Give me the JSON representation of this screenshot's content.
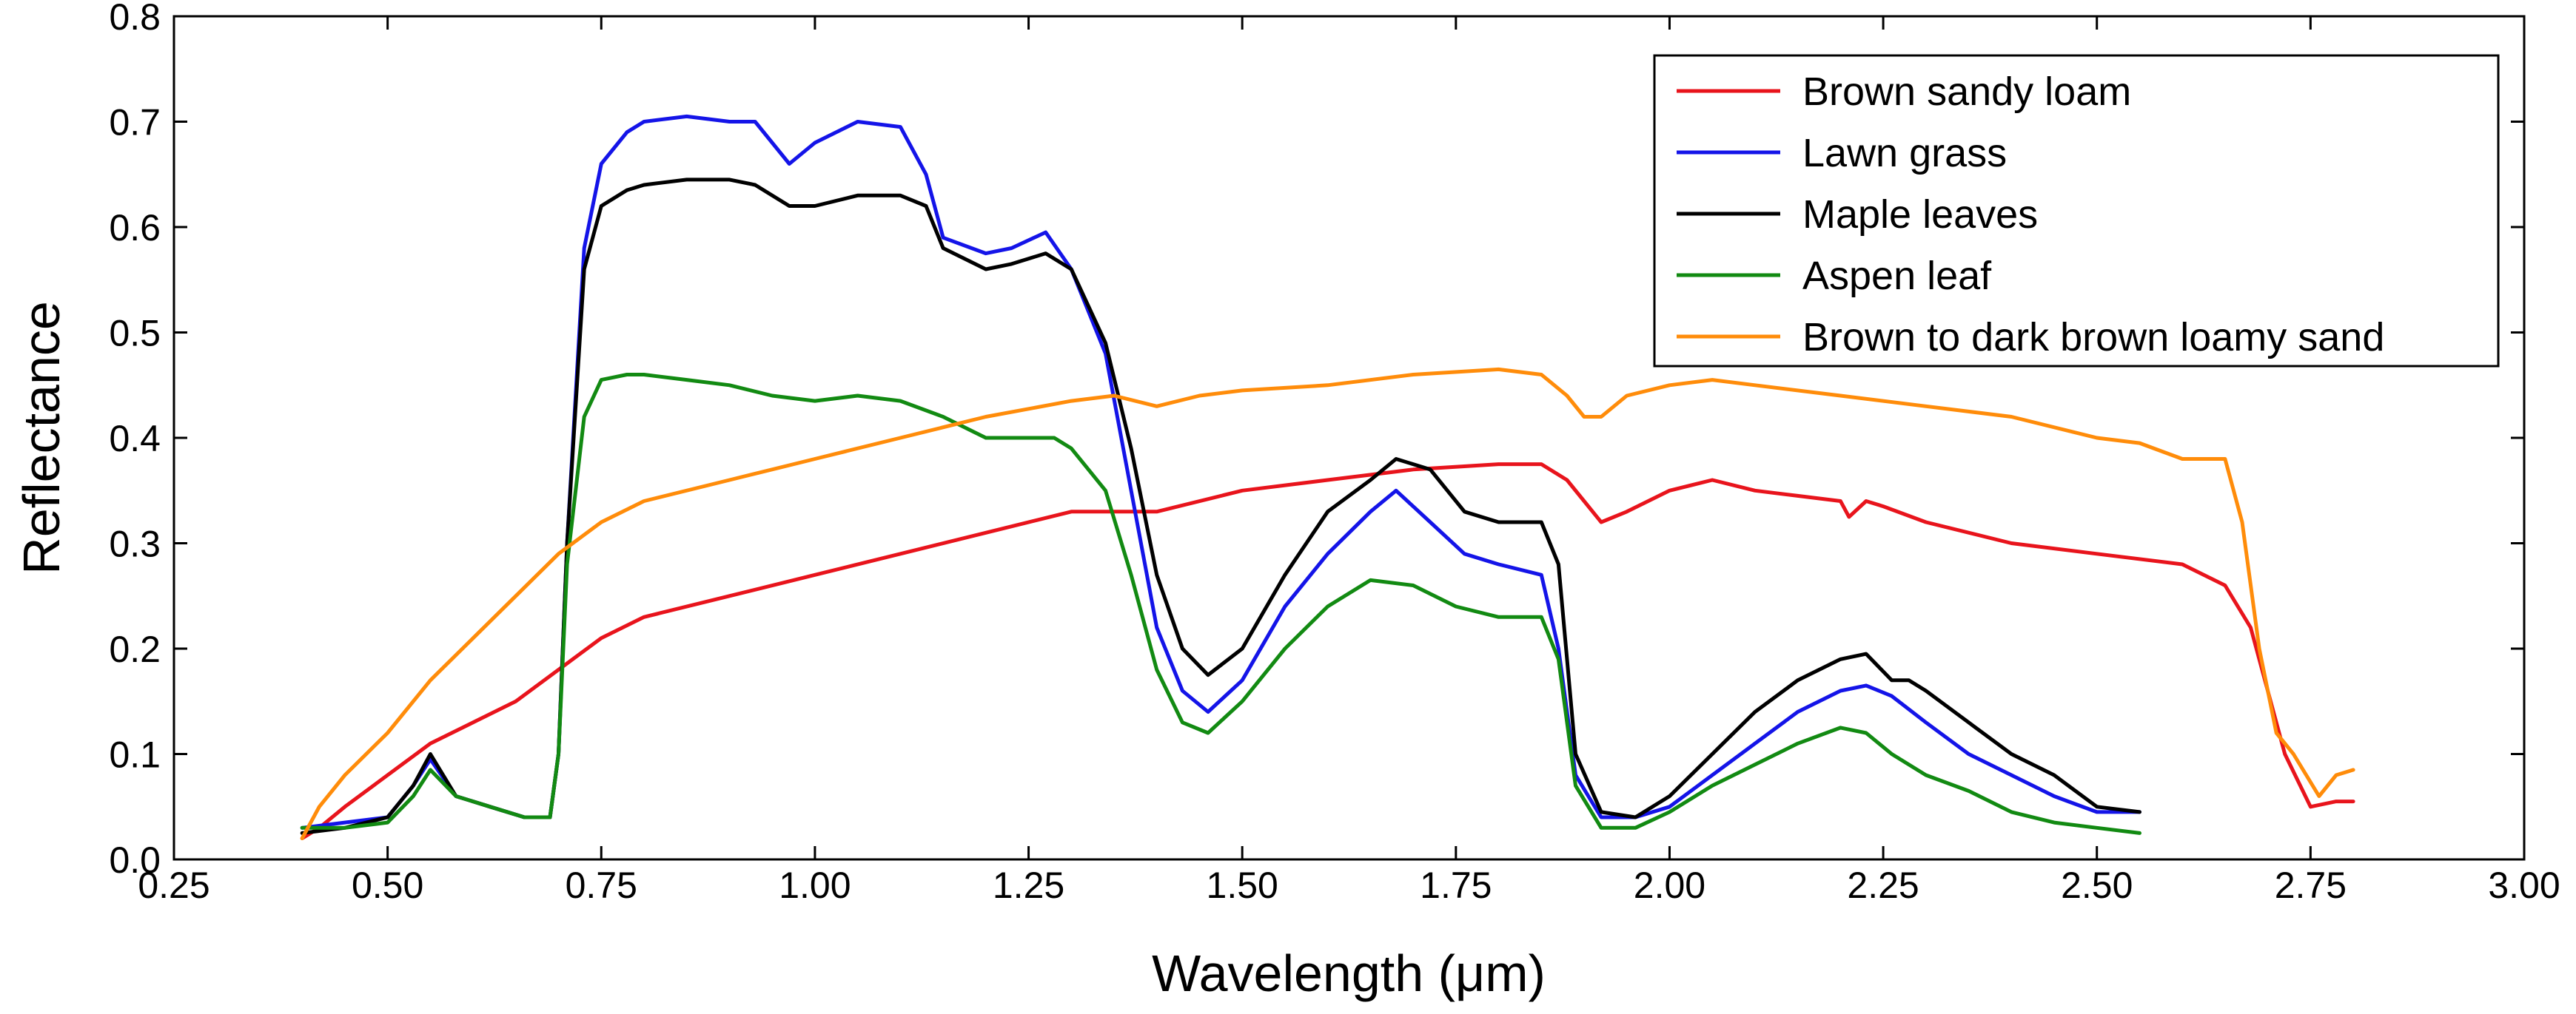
{
  "chart_data": {
    "type": "line",
    "title": "",
    "xlabel": "Wavelength (μm)",
    "ylabel": "Reflectance",
    "xlim": [
      0.25,
      3.0
    ],
    "ylim": [
      0.0,
      0.8
    ],
    "xticks": [
      "0.25",
      "0.50",
      "0.75",
      "1.00",
      "1.25",
      "1.50",
      "1.75",
      "2.00",
      "2.25",
      "2.50",
      "2.75",
      "3.00"
    ],
    "yticks": [
      "0.0",
      "0.1",
      "0.2",
      "0.3",
      "0.4",
      "0.5",
      "0.6",
      "0.7",
      "0.8"
    ],
    "grid": false,
    "legend_position": "top-right",
    "series": [
      {
        "name": "Brown sandy loam",
        "color": "#e8141c",
        "x": [
          0.4,
          0.42,
          0.45,
          0.5,
          0.55,
          0.6,
          0.65,
          0.7,
          0.75,
          0.8,
          0.9,
          1.0,
          1.1,
          1.2,
          1.3,
          1.4,
          1.5,
          1.6,
          1.7,
          1.8,
          1.85,
          1.88,
          1.9,
          1.92,
          1.95,
          2.0,
          2.05,
          2.1,
          2.15,
          2.2,
          2.21,
          2.23,
          2.25,
          2.3,
          2.4,
          2.5,
          2.6,
          2.65,
          2.68,
          2.7,
          2.72,
          2.75,
          2.78,
          2.8
        ],
        "y": [
          0.02,
          0.03,
          0.05,
          0.08,
          0.11,
          0.13,
          0.15,
          0.18,
          0.21,
          0.23,
          0.25,
          0.27,
          0.29,
          0.31,
          0.33,
          0.33,
          0.35,
          0.36,
          0.37,
          0.375,
          0.375,
          0.36,
          0.34,
          0.32,
          0.33,
          0.35,
          0.36,
          0.35,
          0.345,
          0.34,
          0.325,
          0.34,
          0.335,
          0.32,
          0.3,
          0.29,
          0.28,
          0.26,
          0.22,
          0.16,
          0.1,
          0.05,
          0.055,
          0.055
        ]
      },
      {
        "name": "Lawn grass",
        "color": "#1414e8",
        "x": [
          0.4,
          0.45,
          0.5,
          0.53,
          0.55,
          0.58,
          0.62,
          0.66,
          0.69,
          0.7,
          0.71,
          0.73,
          0.75,
          0.78,
          0.8,
          0.85,
          0.9,
          0.93,
          0.97,
          1.0,
          1.05,
          1.1,
          1.13,
          1.15,
          1.2,
          1.23,
          1.27,
          1.3,
          1.34,
          1.37,
          1.4,
          1.43,
          1.46,
          1.5,
          1.55,
          1.6,
          1.65,
          1.68,
          1.72,
          1.76,
          1.8,
          1.85,
          1.87,
          1.89,
          1.92,
          1.96,
          2.0,
          2.05,
          2.1,
          2.15,
          2.2,
          2.23,
          2.26,
          2.3,
          2.35,
          2.4,
          2.45,
          2.5,
          2.55
        ],
        "y": [
          0.03,
          0.035,
          0.04,
          0.07,
          0.095,
          0.06,
          0.05,
          0.04,
          0.04,
          0.1,
          0.3,
          0.58,
          0.66,
          0.69,
          0.7,
          0.705,
          0.7,
          0.7,
          0.66,
          0.68,
          0.7,
          0.695,
          0.65,
          0.59,
          0.575,
          0.58,
          0.595,
          0.56,
          0.48,
          0.35,
          0.22,
          0.16,
          0.14,
          0.17,
          0.24,
          0.29,
          0.33,
          0.35,
          0.32,
          0.29,
          0.28,
          0.27,
          0.2,
          0.08,
          0.04,
          0.04,
          0.05,
          0.08,
          0.11,
          0.14,
          0.16,
          0.165,
          0.155,
          0.13,
          0.1,
          0.08,
          0.06,
          0.045,
          0.045
        ]
      },
      {
        "name": "Maple leaves",
        "color": "#000000",
        "x": [
          0.4,
          0.45,
          0.5,
          0.53,
          0.55,
          0.58,
          0.62,
          0.66,
          0.69,
          0.7,
          0.71,
          0.73,
          0.75,
          0.78,
          0.8,
          0.85,
          0.9,
          0.93,
          0.97,
          1.0,
          1.05,
          1.1,
          1.13,
          1.15,
          1.2,
          1.23,
          1.27,
          1.3,
          1.34,
          1.37,
          1.4,
          1.43,
          1.46,
          1.5,
          1.55,
          1.6,
          1.65,
          1.68,
          1.72,
          1.76,
          1.8,
          1.85,
          1.87,
          1.89,
          1.92,
          1.96,
          2.0,
          2.05,
          2.1,
          2.15,
          2.2,
          2.23,
          2.26,
          2.28,
          2.3,
          2.35,
          2.4,
          2.45,
          2.5,
          2.55
        ],
        "y": [
          0.025,
          0.03,
          0.04,
          0.07,
          0.1,
          0.06,
          0.05,
          0.04,
          0.04,
          0.1,
          0.3,
          0.56,
          0.62,
          0.635,
          0.64,
          0.645,
          0.645,
          0.64,
          0.62,
          0.62,
          0.63,
          0.63,
          0.62,
          0.58,
          0.56,
          0.565,
          0.575,
          0.56,
          0.49,
          0.39,
          0.27,
          0.2,
          0.175,
          0.2,
          0.27,
          0.33,
          0.36,
          0.38,
          0.37,
          0.33,
          0.32,
          0.32,
          0.28,
          0.1,
          0.045,
          0.04,
          0.06,
          0.1,
          0.14,
          0.17,
          0.19,
          0.195,
          0.17,
          0.17,
          0.16,
          0.13,
          0.1,
          0.08,
          0.05,
          0.045
        ]
      },
      {
        "name": "Aspen leaf",
        "color": "#128a12",
        "x": [
          0.4,
          0.45,
          0.5,
          0.53,
          0.55,
          0.58,
          0.62,
          0.66,
          0.69,
          0.7,
          0.71,
          0.73,
          0.75,
          0.78,
          0.8,
          0.85,
          0.9,
          0.95,
          1.0,
          1.05,
          1.1,
          1.15,
          1.2,
          1.25,
          1.28,
          1.3,
          1.34,
          1.37,
          1.4,
          1.43,
          1.46,
          1.5,
          1.55,
          1.6,
          1.65,
          1.7,
          1.75,
          1.8,
          1.85,
          1.87,
          1.89,
          1.92,
          1.96,
          2.0,
          2.05,
          2.1,
          2.15,
          2.2,
          2.23,
          2.26,
          2.3,
          2.35,
          2.4,
          2.45,
          2.5,
          2.55
        ],
        "y": [
          0.03,
          0.03,
          0.035,
          0.06,
          0.085,
          0.06,
          0.05,
          0.04,
          0.04,
          0.1,
          0.28,
          0.42,
          0.455,
          0.46,
          0.46,
          0.455,
          0.45,
          0.44,
          0.435,
          0.44,
          0.435,
          0.42,
          0.4,
          0.4,
          0.4,
          0.39,
          0.35,
          0.27,
          0.18,
          0.13,
          0.12,
          0.15,
          0.2,
          0.24,
          0.265,
          0.26,
          0.24,
          0.23,
          0.23,
          0.19,
          0.07,
          0.03,
          0.03,
          0.045,
          0.07,
          0.09,
          0.11,
          0.125,
          0.12,
          0.1,
          0.08,
          0.065,
          0.045,
          0.035,
          0.03,
          0.025
        ]
      },
      {
        "name": "Brown to dark brown loamy sand",
        "color": "#ff8c0a",
        "x": [
          0.4,
          0.42,
          0.45,
          0.5,
          0.55,
          0.6,
          0.65,
          0.7,
          0.75,
          0.8,
          0.9,
          1.0,
          1.1,
          1.2,
          1.3,
          1.35,
          1.4,
          1.45,
          1.5,
          1.6,
          1.7,
          1.8,
          1.85,
          1.88,
          1.9,
          1.92,
          1.95,
          2.0,
          2.05,
          2.1,
          2.2,
          2.3,
          2.4,
          2.5,
          2.55,
          2.6,
          2.65,
          2.67,
          2.69,
          2.71,
          2.73,
          2.76,
          2.78,
          2.8
        ],
        "y": [
          0.02,
          0.05,
          0.08,
          0.12,
          0.17,
          0.21,
          0.25,
          0.29,
          0.32,
          0.34,
          0.36,
          0.38,
          0.4,
          0.42,
          0.435,
          0.44,
          0.43,
          0.44,
          0.445,
          0.45,
          0.46,
          0.465,
          0.46,
          0.44,
          0.42,
          0.42,
          0.44,
          0.45,
          0.455,
          0.45,
          0.44,
          0.43,
          0.42,
          0.4,
          0.395,
          0.38,
          0.38,
          0.32,
          0.2,
          0.12,
          0.1,
          0.06,
          0.08,
          0.085
        ]
      }
    ]
  }
}
